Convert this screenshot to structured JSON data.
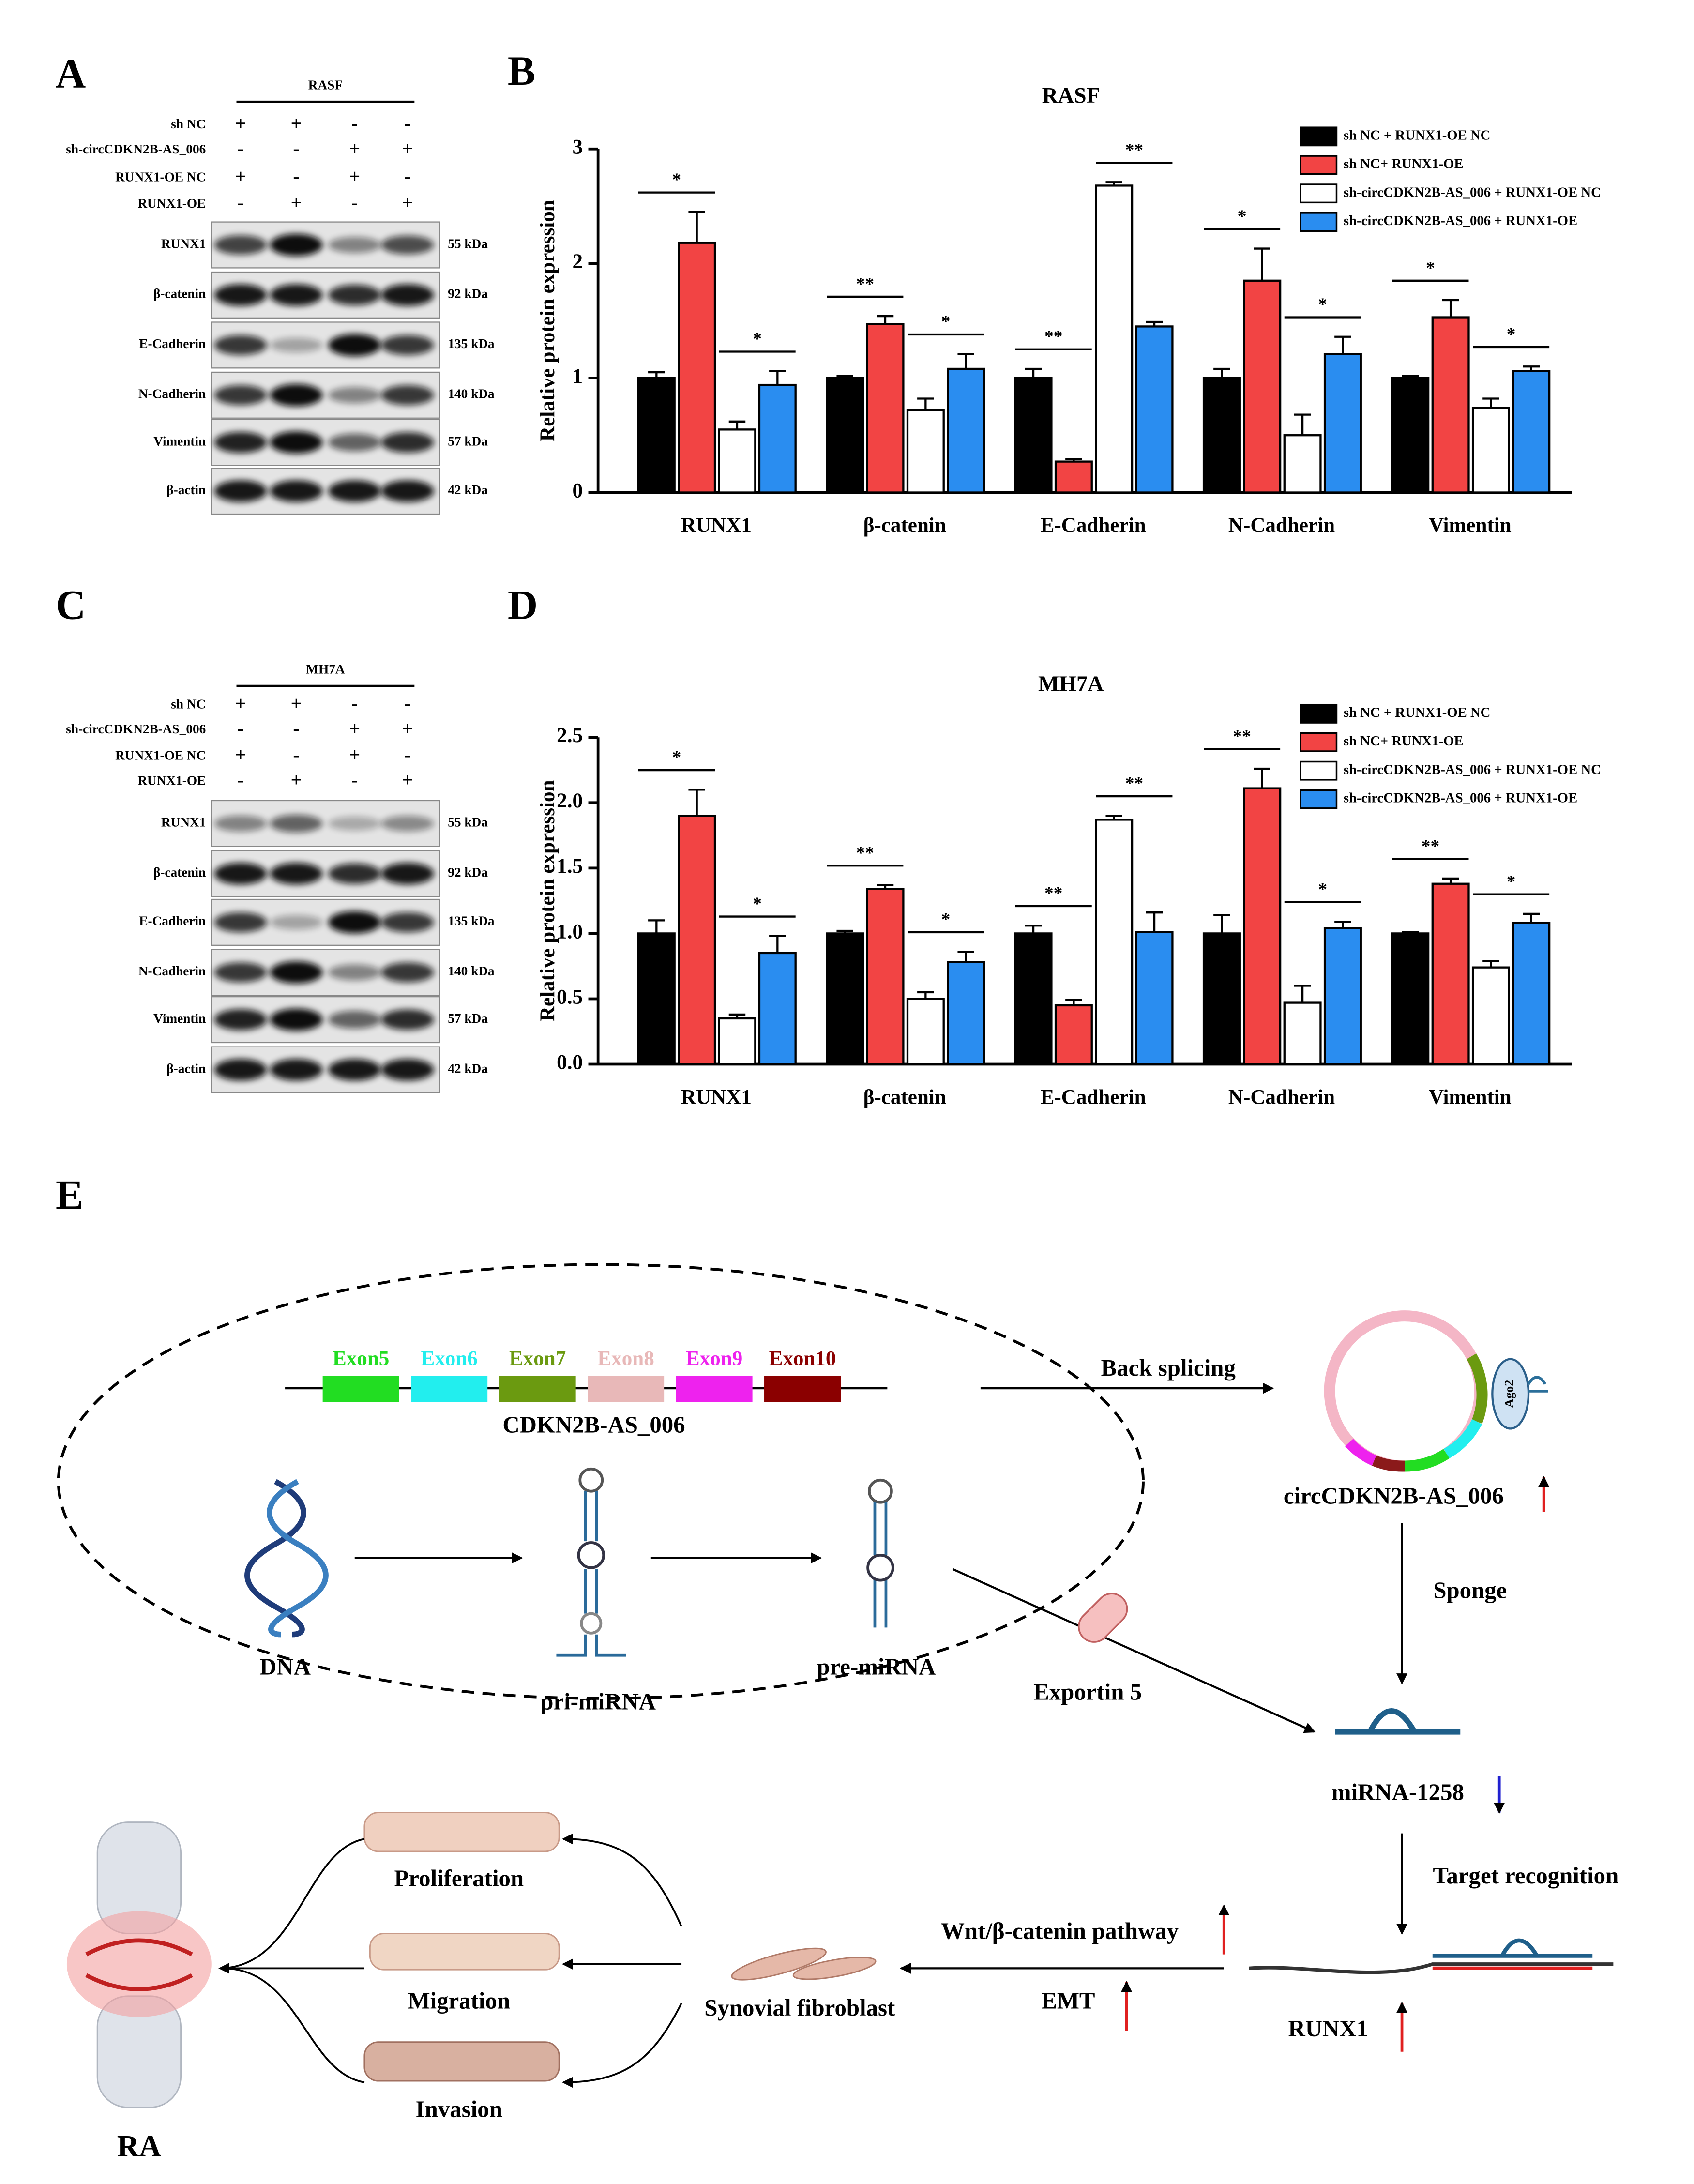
{
  "panel_labels": [
    "A",
    "B",
    "C",
    "D",
    "E"
  ],
  "blots": [
    {
      "cell_line": "RASF",
      "conditions": [
        {
          "name": "sh NC",
          "signs": [
            "+",
            "+",
            "-",
            "-"
          ]
        },
        {
          "name": "sh-circCDKN2B-AS_006",
          "signs": [
            "-",
            "-",
            "+",
            "+"
          ]
        },
        {
          "name": "RUNX1-OE NC",
          "signs": [
            "+",
            "-",
            "+",
            "-"
          ]
        },
        {
          "name": "RUNX1-OE",
          "signs": [
            "-",
            "+",
            "-",
            "+"
          ]
        }
      ],
      "proteins": [
        {
          "name": "RUNX1",
          "size": "55 kDa"
        },
        {
          "name": "β-catenin",
          "size": "92 kDa"
        },
        {
          "name": "E-Cadherin",
          "size": "135 kDa"
        },
        {
          "name": "N-Cadherin",
          "size": "140 kDa"
        },
        {
          "name": "Vimentin",
          "size": "57 kDa"
        },
        {
          "name": "β-actin",
          "size": "42 kDa"
        }
      ]
    },
    {
      "cell_line": "MH7A",
      "conditions": [
        {
          "name": "sh NC",
          "signs": [
            "+",
            "+",
            "-",
            "-"
          ]
        },
        {
          "name": "sh-circCDKN2B-AS_006",
          "signs": [
            "-",
            "-",
            "+",
            "+"
          ]
        },
        {
          "name": "RUNX1-OE NC",
          "signs": [
            "+",
            "-",
            "+",
            "-"
          ]
        },
        {
          "name": "RUNX1-OE",
          "signs": [
            "-",
            "+",
            "-",
            "+"
          ]
        }
      ],
      "proteins": [
        {
          "name": "RUNX1",
          "size": "55 kDa"
        },
        {
          "name": "β-catenin",
          "size": "92 kDa"
        },
        {
          "name": "E-Cadherin",
          "size": "135 kDa"
        },
        {
          "name": "N-Cadherin",
          "size": "140 kDa"
        },
        {
          "name": "Vimentin",
          "size": "57 kDa"
        },
        {
          "name": "β-actin",
          "size": "42 kDa"
        }
      ]
    }
  ],
  "chart_data": [
    {
      "type": "bar",
      "title": "RASF",
      "y_label": "Relative protein expression",
      "categories": [
        "RUNX1",
        "β-catenin",
        "E-Cadherin",
        "N-Cadherin",
        "Vimentin"
      ],
      "series": [
        {
          "name": "sh NC + RUNX1-OE NC",
          "color": "#000000",
          "values": [
            1.0,
            1.0,
            1.0,
            1.0,
            1.0
          ],
          "errors": [
            0.05,
            0.02,
            0.08,
            0.08,
            0.02
          ]
        },
        {
          "name": "sh NC+ RUNX1-OE",
          "color": "#f24444",
          "values": [
            2.18,
            1.47,
            0.27,
            1.85,
            1.53
          ],
          "errors": [
            0.27,
            0.07,
            0.02,
            0.28,
            0.15
          ]
        },
        {
          "name": "sh-circCDKN2B-AS_006 + RUNX1-OE NC",
          "color": "#ffffff",
          "values": [
            0.55,
            0.72,
            2.68,
            0.5,
            0.74
          ],
          "errors": [
            0.07,
            0.1,
            0.03,
            0.18,
            0.08
          ]
        },
        {
          "name": "sh-circCDKN2B-AS_006 + RUNX1-OE",
          "color": "#2a8df0",
          "values": [
            0.94,
            1.08,
            1.45,
            1.21,
            1.06
          ],
          "errors": [
            0.12,
            0.13,
            0.04,
            0.15,
            0.04
          ]
        }
      ],
      "significance": [
        [
          "*",
          "*"
        ],
        [
          "**",
          "*"
        ],
        [
          "**",
          "**"
        ],
        [
          "*",
          "*"
        ],
        [
          "*",
          "*"
        ]
      ],
      "ylim": [
        0,
        3
      ],
      "yticks": [
        0,
        1,
        2,
        3
      ]
    },
    {
      "type": "bar",
      "title": "MH7A",
      "y_label": "Relative protein expression",
      "categories": [
        "RUNX1",
        "β-catenin",
        "E-Cadherin",
        "N-Cadherin",
        "Vimentin"
      ],
      "series": [
        {
          "name": "sh NC + RUNX1-OE NC",
          "color": "#000000",
          "values": [
            1.0,
            1.0,
            1.0,
            1.0,
            1.0
          ],
          "errors": [
            0.1,
            0.02,
            0.06,
            0.14,
            0.01
          ]
        },
        {
          "name": "sh NC+ RUNX1-OE",
          "color": "#f24444",
          "values": [
            1.9,
            1.34,
            0.45,
            2.11,
            1.38
          ],
          "errors": [
            0.2,
            0.03,
            0.04,
            0.15,
            0.04
          ]
        },
        {
          "name": "sh-circCDKN2B-AS_006 + RUNX1-OE NC",
          "color": "#ffffff",
          "values": [
            0.35,
            0.5,
            1.87,
            0.47,
            0.74
          ],
          "errors": [
            0.03,
            0.05,
            0.03,
            0.13,
            0.05
          ]
        },
        {
          "name": "sh-circCDKN2B-AS_006 + RUNX1-OE",
          "color": "#2a8df0",
          "values": [
            0.85,
            0.78,
            1.01,
            1.04,
            1.08
          ],
          "errors": [
            0.13,
            0.08,
            0.15,
            0.05,
            0.07
          ]
        }
      ],
      "significance": [
        [
          "*",
          "*"
        ],
        [
          "**",
          "*"
        ],
        [
          "**",
          "**"
        ],
        [
          "**",
          "*"
        ],
        [
          "**",
          "*"
        ]
      ],
      "ylim": [
        0,
        2.5
      ],
      "yticks": [
        {
          "value": 0,
          "label": "0.0"
        },
        0.5,
        {
          "value": 1,
          "label": "1.0"
        },
        1.5,
        {
          "value": 2,
          "label": "2.0"
        },
        2.5
      ]
    }
  ],
  "diagram": {
    "exons": [
      {
        "label": "Exon5",
        "color": "#22dd22"
      },
      {
        "label": "Exon6",
        "color": "#22eeee"
      },
      {
        "label": "Exon7",
        "color": "#6b9a10"
      },
      {
        "label": "Exon8",
        "color": "#e8b8b8"
      },
      {
        "label": "Exon9",
        "color": "#ee22ee"
      },
      {
        "label": "Exon10",
        "color": "#8b0000"
      }
    ],
    "gene": "CDKN2B-AS_006",
    "back_splicing": "Back splicing",
    "ago2": "Ago2",
    "circ": "circCDKN2B-AS_006",
    "sponge": "Sponge",
    "dna": "DNA",
    "pri": "pri-miRNA",
    "pre": "pre-miRNA",
    "exportin": "Exportin 5",
    "mirna": "miRNA-1258",
    "target": "Target recognition",
    "runx1": "RUNX1",
    "wnt": "Wnt/β-catenin pathway",
    "emt": "EMT",
    "fibroblast": "Synovial fibroblast",
    "proliferation": "Proliferation",
    "migration": "Migration",
    "invasion": "Invasion",
    "ra": "RA"
  }
}
